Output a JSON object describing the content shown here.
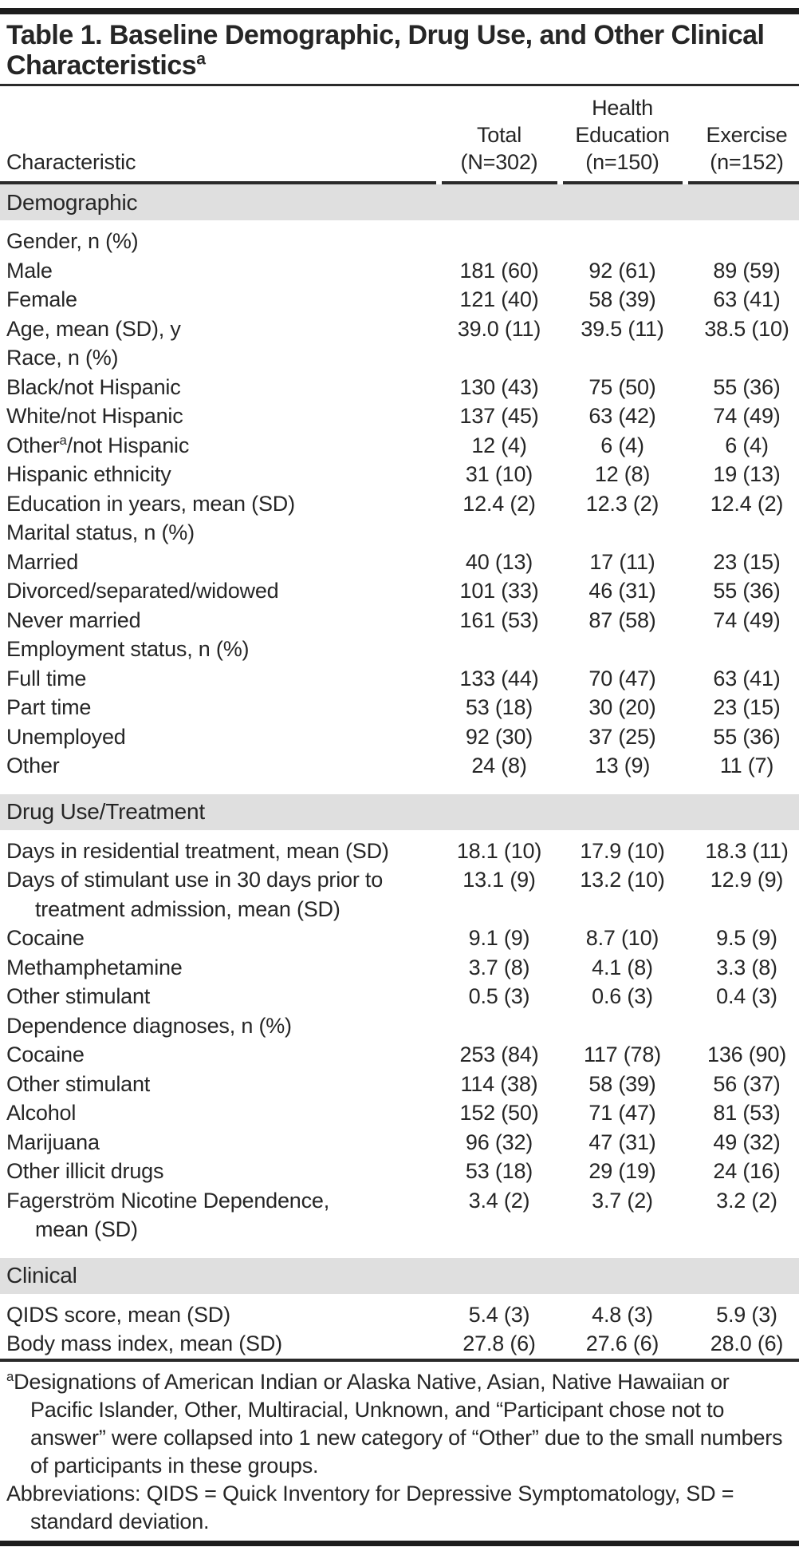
{
  "title": {
    "line1": "Table 1. Baseline Demographic, Drug Use, and Other Clinical",
    "line2": "Characteristics",
    "sup": "a"
  },
  "header": {
    "characteristic": "Characteristic",
    "total_lines": [
      "Total",
      "(N=302)"
    ],
    "health_education_lines": [
      "Health",
      "Education",
      "(n=150)"
    ],
    "exercise_lines": [
      "Exercise",
      "(n=152)"
    ]
  },
  "colors": {
    "text": "#262626",
    "rule": "#1d1d1d",
    "section_band_bg": "#dfdfdf"
  },
  "table": {
    "sections": [
      {
        "name": "Demographic",
        "rows": [
          {
            "label": "Gender, n (%)",
            "values": [
              "",
              "",
              ""
            ]
          },
          {
            "label": "Male",
            "values": [
              "181 (60)",
              "92 (61)",
              "89 (59)"
            ]
          },
          {
            "label": "Female",
            "values": [
              "121 (40)",
              "58 (39)",
              "63 (41)"
            ]
          },
          {
            "label": "Age, mean (SD), y",
            "values": [
              "39.0 (11)",
              "39.5 (11)",
              "38.5 (10)"
            ]
          },
          {
            "label": "Race, n (%)",
            "values": [
              "",
              "",
              ""
            ]
          },
          {
            "label": "Black/not Hispanic",
            "values": [
              "130 (43)",
              "75 (50)",
              "55 (36)"
            ]
          },
          {
            "label": "White/not Hispanic",
            "values": [
              "137 (45)",
              "63 (42)",
              "74 (49)"
            ]
          },
          {
            "label": "Other",
            "label_sup": "a",
            "label_post": "/not Hispanic",
            "values": [
              "12 (4)",
              "6 (4)",
              "6 (4)"
            ]
          },
          {
            "label": "Hispanic ethnicity",
            "values": [
              "31 (10)",
              "12 (8)",
              "19 (13)"
            ]
          },
          {
            "label": "Education in years, mean (SD)",
            "values": [
              "12.4 (2)",
              "12.3 (2)",
              "12.4 (2)"
            ]
          },
          {
            "label": "Marital status, n (%)",
            "values": [
              "",
              "",
              ""
            ]
          },
          {
            "label": "Married",
            "values": [
              "40 (13)",
              "17 (11)",
              "23 (15)"
            ]
          },
          {
            "label": "Divorced/separated/widowed",
            "values": [
              "101 (33)",
              "46 (31)",
              "55 (36)"
            ]
          },
          {
            "label": "Never married",
            "values": [
              "161 (53)",
              "87 (58)",
              "74 (49)"
            ]
          },
          {
            "label": "Employment status, n (%)",
            "values": [
              "",
              "",
              ""
            ]
          },
          {
            "label": "Full time",
            "values": [
              "133 (44)",
              "70 (47)",
              "63 (41)"
            ]
          },
          {
            "label": "Part time",
            "values": [
              "53 (18)",
              "30 (20)",
              "23 (15)"
            ]
          },
          {
            "label": "Unemployed",
            "values": [
              "92 (30)",
              "37 (25)",
              "55 (36)"
            ]
          },
          {
            "label": "Other",
            "values": [
              "24 (8)",
              "13 (9)",
              "11 (7)"
            ]
          }
        ]
      },
      {
        "name": "Drug Use/Treatment",
        "rows": [
          {
            "label": "Days in residential treatment, mean (SD)",
            "values": [
              "18.1 (10)",
              "17.9 (10)",
              "18.3 (11)"
            ]
          },
          {
            "label": "Days of stimulant use in 30 days prior to",
            "label2": "treatment admission, mean (SD)",
            "values": [
              "13.1 (9)",
              "13.2 (10)",
              "12.9 (9)"
            ]
          },
          {
            "label": "Cocaine",
            "values": [
              "9.1 (9)",
              "8.7 (10)",
              "9.5 (9)"
            ]
          },
          {
            "label": "Methamphetamine",
            "values": [
              "3.7 (8)",
              "4.1 (8)",
              "3.3 (8)"
            ]
          },
          {
            "label": "Other stimulant",
            "values": [
              "0.5 (3)",
              "0.6 (3)",
              "0.4 (3)"
            ]
          },
          {
            "label": "Dependence diagnoses, n (%)",
            "values": [
              "",
              "",
              ""
            ]
          },
          {
            "label": "Cocaine",
            "values": [
              "253 (84)",
              "117 (78)",
              "136 (90)"
            ]
          },
          {
            "label": "Other stimulant",
            "values": [
              "114 (38)",
              "58 (39)",
              "56 (37)"
            ]
          },
          {
            "label": "Alcohol",
            "values": [
              "152 (50)",
              "71 (47)",
              "81 (53)"
            ]
          },
          {
            "label": "Marijuana",
            "values": [
              "96 (32)",
              "47 (31)",
              "49 (32)"
            ]
          },
          {
            "label": "Other illicit drugs",
            "values": [
              "53 (18)",
              "29 (19)",
              "24 (16)"
            ]
          },
          {
            "label": "Fagerström Nicotine Dependence,",
            "label2": "mean (SD)",
            "values": [
              "3.4 (2)",
              "3.7 (2)",
              "3.2 (2)"
            ]
          }
        ]
      },
      {
        "name": "Clinical",
        "rows": [
          {
            "label": "QIDS score, mean (SD)",
            "values": [
              "5.4 (3)",
              "4.8 (3)",
              "5.9 (3)"
            ]
          },
          {
            "label": "Body mass index, mean (SD)",
            "values": [
              "27.8 (6)",
              "27.6 (6)",
              "28.0 (6)"
            ]
          }
        ]
      }
    ]
  },
  "footnotes": [
    {
      "sup": "a",
      "text": "Designations of American Indian or Alaska Native, Asian, Native Hawaiian or Pacific Islander, Other, Multiracial, Unknown, and “Participant chose not to answer” were collapsed into 1 new category of “Other” due to the small numbers of participants in these groups."
    },
    {
      "text": "Abbreviations: QIDS = Quick Inventory for Depressive Symptomatology, SD = standard deviation."
    }
  ]
}
